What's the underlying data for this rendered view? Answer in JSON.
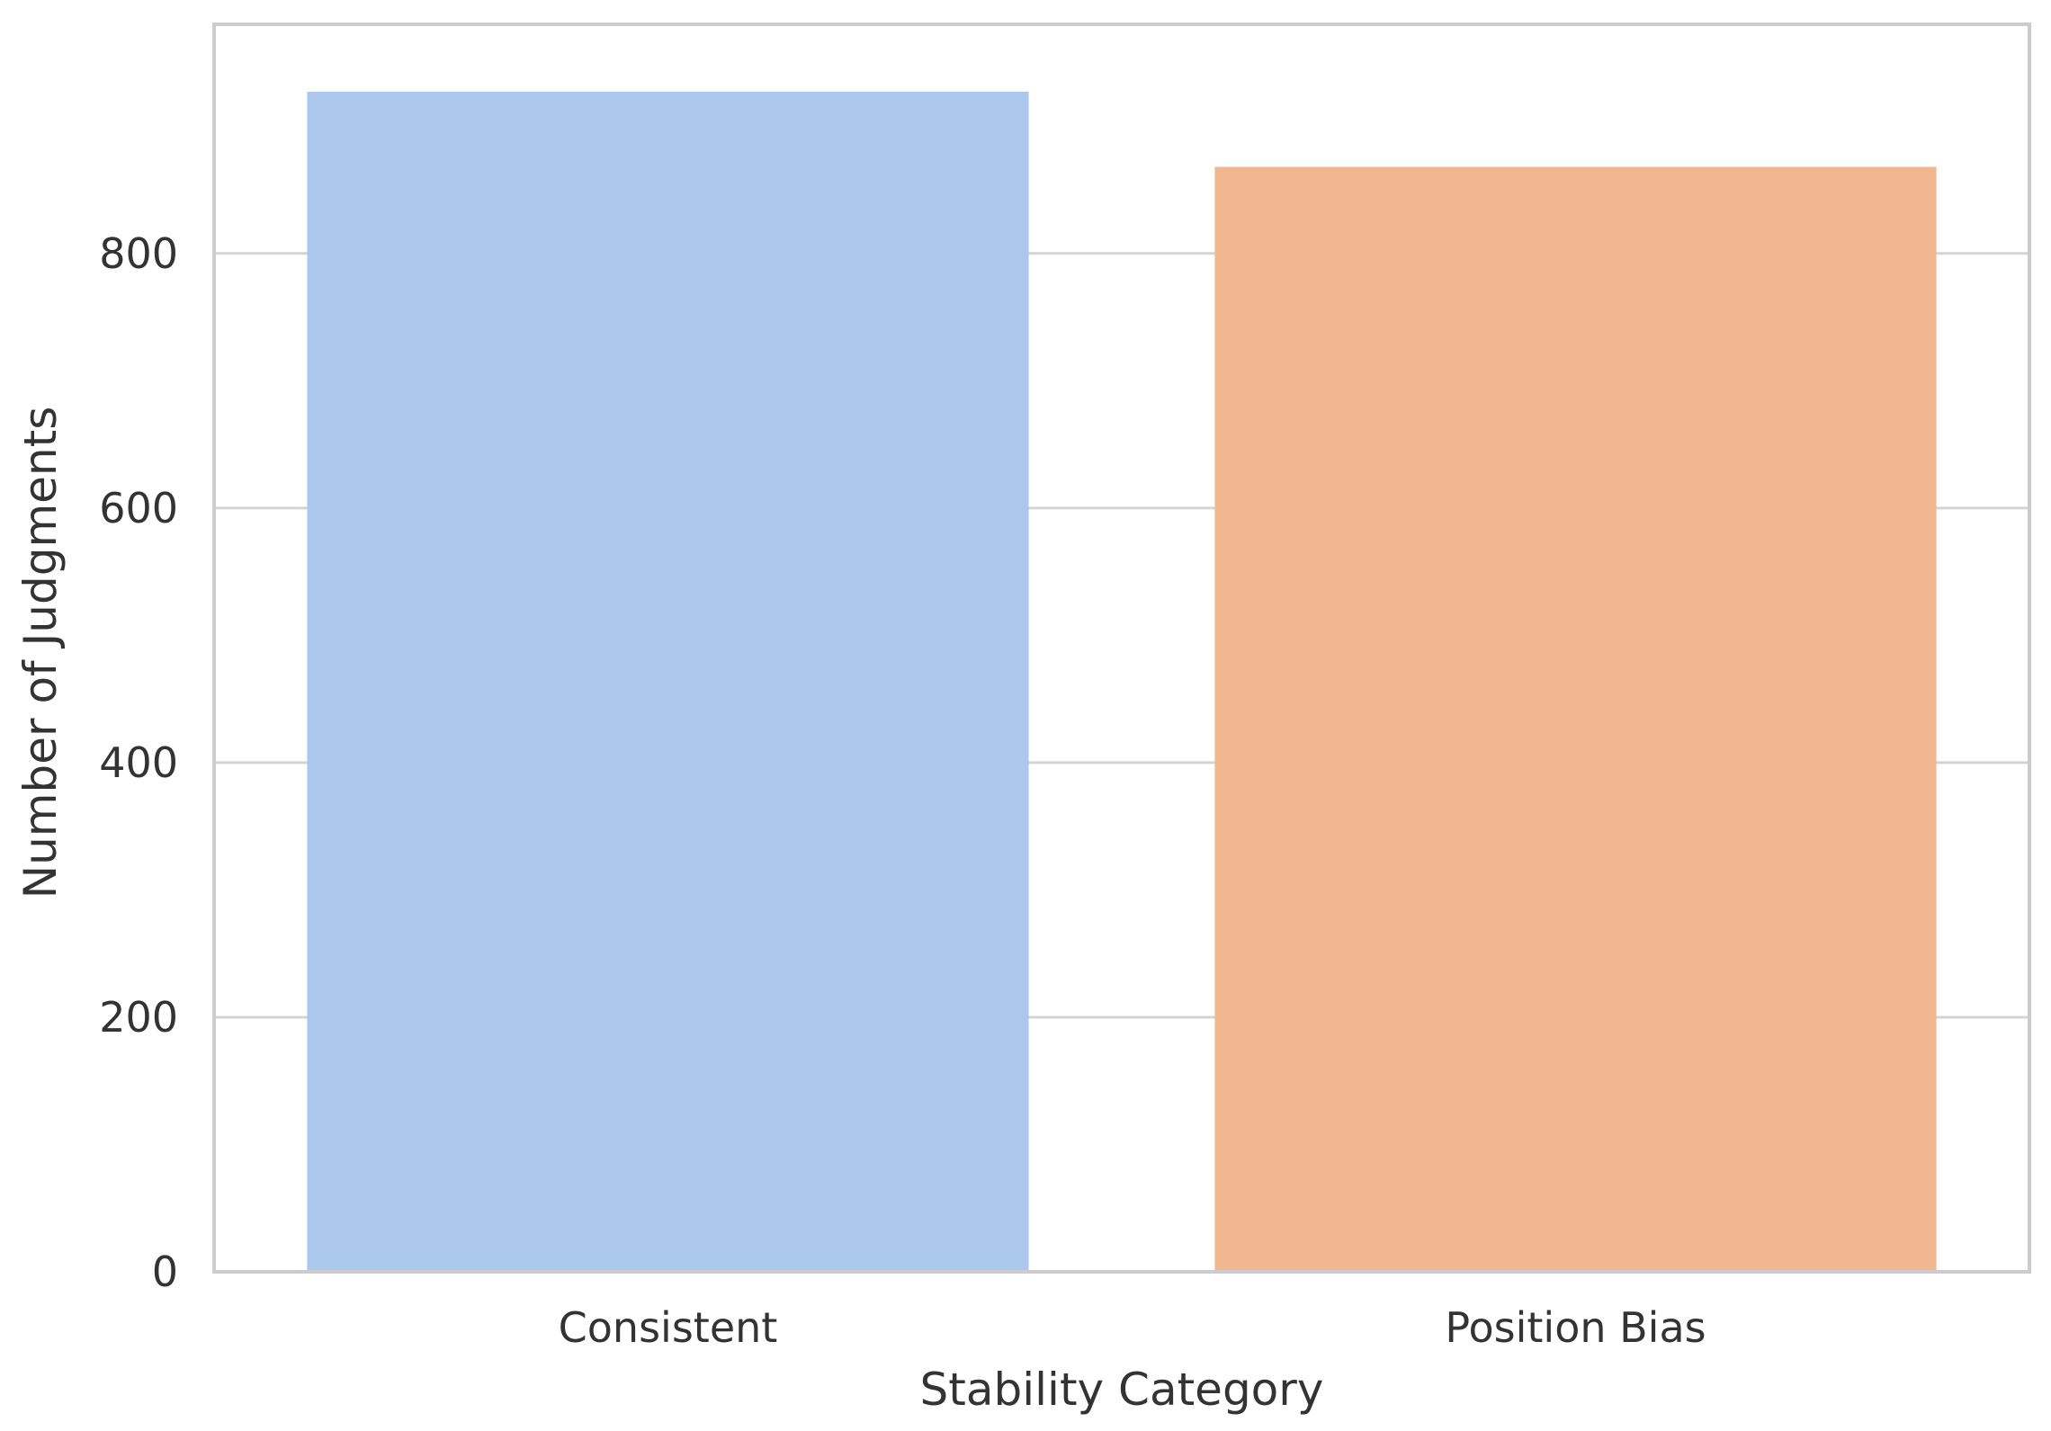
{
  "chart_data": {
    "type": "bar",
    "title": "",
    "xlabel": "Stability Category",
    "ylabel": "Number of Judgments",
    "categories": [
      "Consistent",
      "Position Bias"
    ],
    "values": [
      927,
      868
    ],
    "bar_colors": [
      "#abc8ec",
      "#f0b690"
    ],
    "ylim": [
      0,
      980
    ],
    "yticks": [
      0,
      200,
      400,
      600,
      800
    ],
    "grid": "horizontal",
    "legend": "none",
    "gridline_color": "#d4d4d4",
    "frame_color": "#cccccc"
  }
}
